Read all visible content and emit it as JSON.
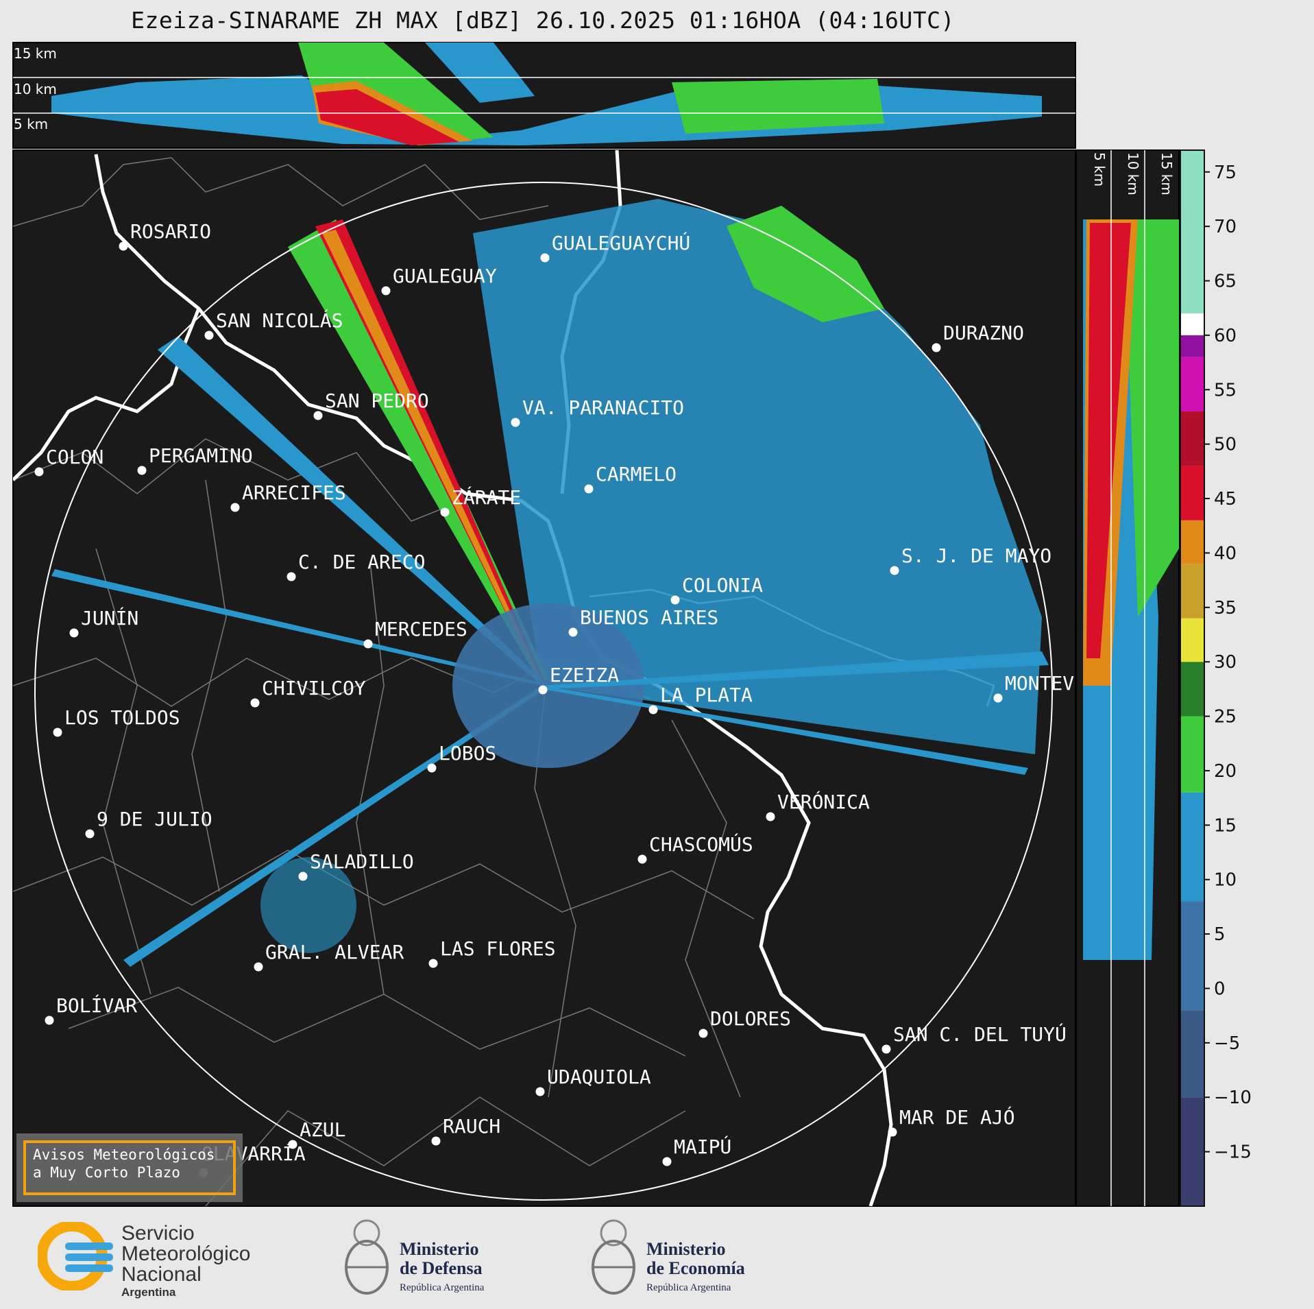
{
  "title": "Ezeiza-SINARAME ZH MAX [dBZ] 26.10.2025 01:16HOA (04:16UTC)",
  "top_panel": {
    "labels": [
      "15 km",
      "10 km",
      "5 km"
    ]
  },
  "right_panel": {
    "labels": [
      "5 km",
      "10 km",
      "15 km"
    ]
  },
  "colorbar": {
    "ticks": [
      "75",
      "70",
      "65",
      "60",
      "55",
      "50",
      "45",
      "40",
      "35",
      "30",
      "25",
      "20",
      "15",
      "10",
      "5",
      "0",
      "−5",
      "−10",
      "−15"
    ],
    "tick_values": [
      75,
      70,
      65,
      60,
      55,
      50,
      45,
      40,
      35,
      30,
      25,
      20,
      15,
      10,
      5,
      0,
      -5,
      -10,
      -15
    ],
    "min": -20,
    "max": 77,
    "stops": [
      {
        "from": -20,
        "to": -10,
        "color": "#3a3f6e"
      },
      {
        "from": -10,
        "to": -2,
        "color": "#3c5a86"
      },
      {
        "from": -2,
        "to": 8,
        "color": "#3d74a8"
      },
      {
        "from": 8,
        "to": 18,
        "color": "#2a97cc"
      },
      {
        "from": 18,
        "to": 25,
        "color": "#3ecc3c"
      },
      {
        "from": 25,
        "to": 30,
        "color": "#2a7f2a"
      },
      {
        "from": 30,
        "to": 34,
        "color": "#e8e43a"
      },
      {
        "from": 34,
        "to": 39,
        "color": "#c8a02a"
      },
      {
        "from": 39,
        "to": 43,
        "color": "#e08a1a"
      },
      {
        "from": 43,
        "to": 48,
        "color": "#d8102a"
      },
      {
        "from": 48,
        "to": 53,
        "color": "#b0102a"
      },
      {
        "from": 53,
        "to": 58,
        "color": "#d010b0"
      },
      {
        "from": 58,
        "to": 60,
        "color": "#9010a0"
      },
      {
        "from": 60,
        "to": 62,
        "color": "#ffffff"
      },
      {
        "from": 62,
        "to": 77,
        "color": "#8ee0c0"
      }
    ]
  },
  "cities": [
    {
      "name": "ROSARIO"
    },
    {
      "name": "GUALEGUAYCHÚ"
    },
    {
      "name": "GUALEGUAY"
    },
    {
      "name": "SAN NICOLÁS"
    },
    {
      "name": "DURAZNO"
    },
    {
      "name": "SAN PEDRO"
    },
    {
      "name": "VA. PARANACITO"
    },
    {
      "name": "COLON"
    },
    {
      "name": "PERGAMINO"
    },
    {
      "name": "CARMELO"
    },
    {
      "name": "ARRECIFES"
    },
    {
      "name": "ZÁRATE"
    },
    {
      "name": "C. DE ARECO"
    },
    {
      "name": "S. J. DE MAYO"
    },
    {
      "name": "COLONIA"
    },
    {
      "name": "JUNÍN"
    },
    {
      "name": "BUENOS AIRES"
    },
    {
      "name": "MERCEDES"
    },
    {
      "name": "EZEIZA"
    },
    {
      "name": "MONTEV"
    },
    {
      "name": "CHIVILCOY"
    },
    {
      "name": "LA PLATA"
    },
    {
      "name": "LOS TOLDOS"
    },
    {
      "name": "LOBOS"
    },
    {
      "name": "VERÓNICA"
    },
    {
      "name": "9 DE JULIO"
    },
    {
      "name": "CHASCOMÚS"
    },
    {
      "name": "SALADILLO"
    },
    {
      "name": "GRAL. ALVEAR"
    },
    {
      "name": "LAS FLORES"
    },
    {
      "name": "BOLÍVAR"
    },
    {
      "name": "DOLORES"
    },
    {
      "name": "SAN C. DEL TUYÚ"
    },
    {
      "name": "UDAQUIOLA"
    },
    {
      "name": "MAR DE AJÓ"
    },
    {
      "name": "AZUL"
    },
    {
      "name": "RAUCH"
    },
    {
      "name": "OLAVARRÍA"
    },
    {
      "name": "MAIPÚ"
    }
  ],
  "warning_box": {
    "line1": "Avisos Meteorológicos",
    "line2": "a Muy Corto Plazo"
  },
  "logos": {
    "smn": {
      "line1": "Servicio",
      "line2": "Meteorológico",
      "line3": "Nacional",
      "line4": "Argentina"
    },
    "defensa": {
      "line1": "Ministerio",
      "line2": "de Defensa",
      "line3": "República Argentina"
    },
    "economia": {
      "line1": "Ministerio",
      "line2": "de Economía",
      "line3": "República Argentina"
    }
  },
  "colors": {
    "map_bg": "#1a1a1a",
    "accent_orange": "#f2a20c",
    "page_bg": "#e8e8e8"
  }
}
